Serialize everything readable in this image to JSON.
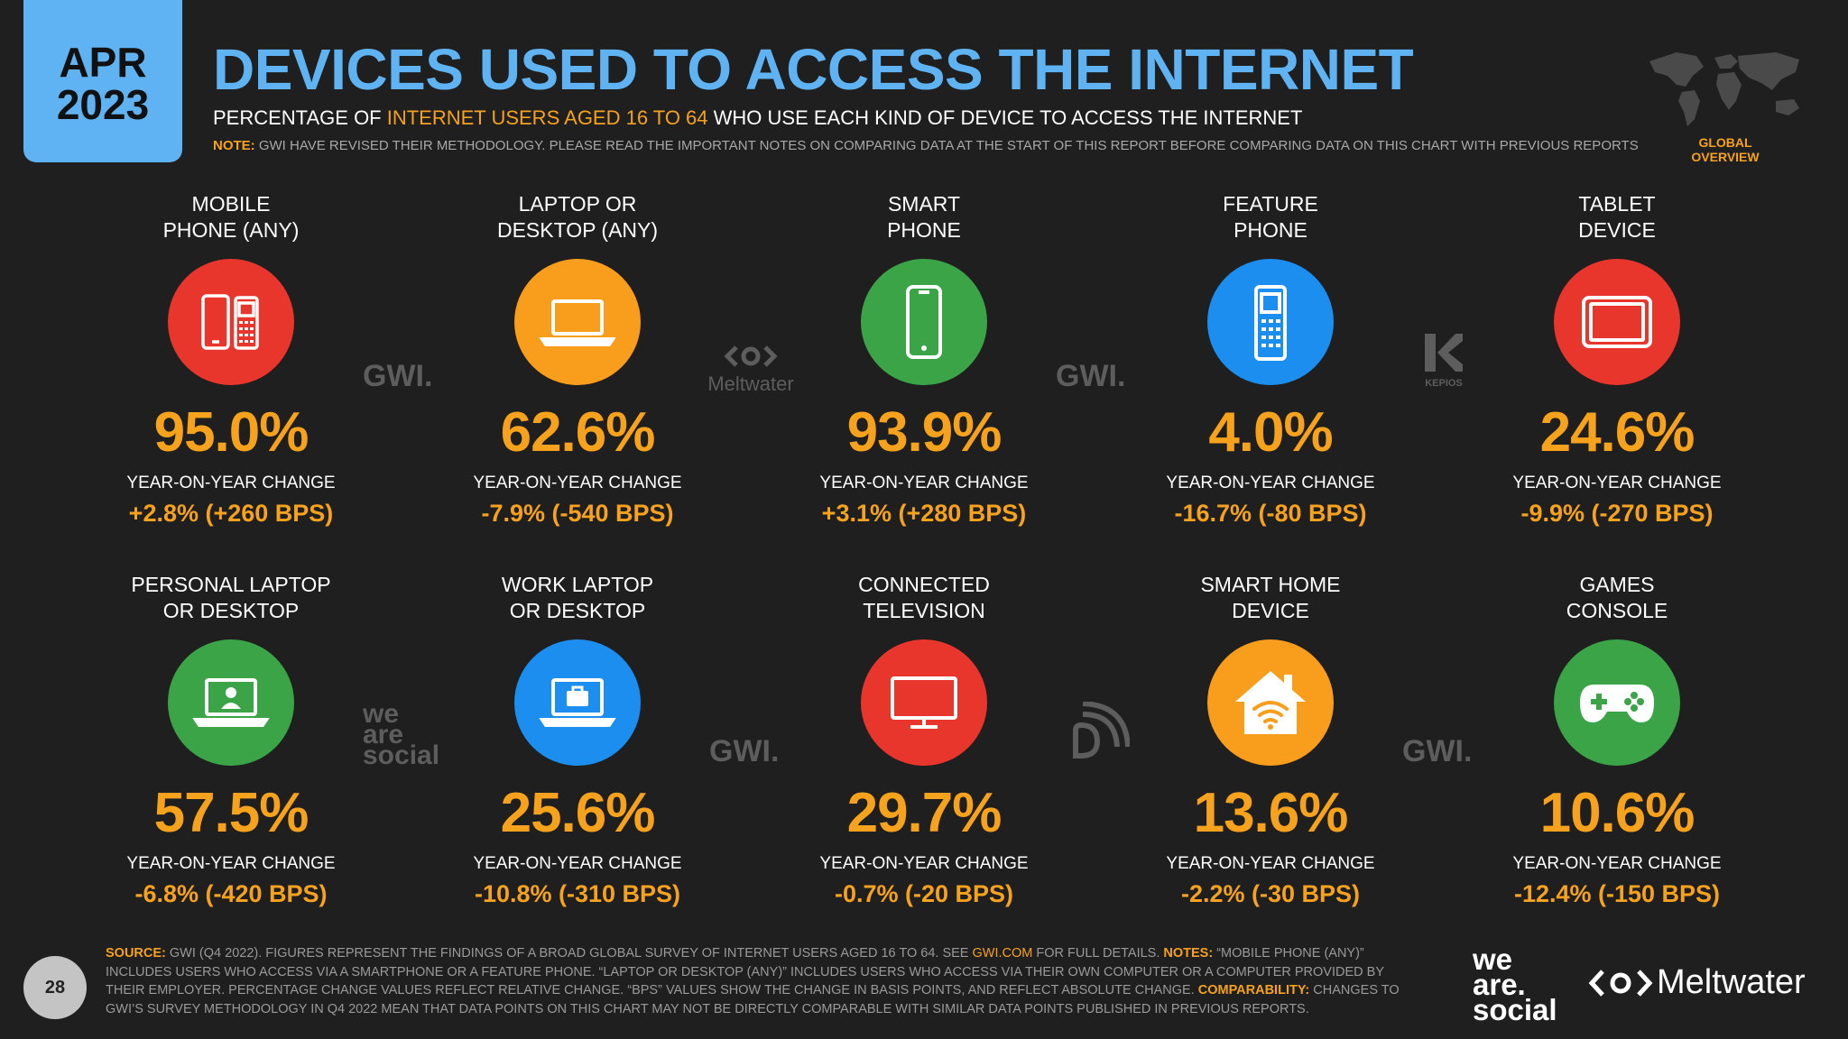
{
  "header": {
    "month": "APR",
    "year": "2023",
    "title": "DEVICES USED TO ACCESS THE INTERNET",
    "subtitle_pre": "PERCENTAGE OF ",
    "subtitle_highlight": "INTERNET USERS AGED 16 TO 64",
    "subtitle_post": " WHO USE EACH KIND OF DEVICE TO ACCESS THE INTERNET",
    "note_label": "NOTE:",
    "note_text": " GWI HAVE REVISED THEIR METHODOLOGY. PLEASE READ THE IMPORTANT NOTES ON COMPARING DATA AT THE START OF THIS REPORT BEFORE COMPARING DATA ON THIS CHART WITH PREVIOUS REPORTS",
    "region": "GLOBAL OVERVIEW"
  },
  "cards": [
    {
      "label_1": "MOBILE",
      "label_2": "PHONE (ANY)",
      "value": "95.0%",
      "yoy_label": "YEAR-ON-YEAR CHANGE",
      "yoy": "+2.8% (+260 BPS)",
      "color": "#e8362d",
      "icon": "mobile-phones-icon"
    },
    {
      "label_1": "LAPTOP OR",
      "label_2": "DESKTOP (ANY)",
      "value": "62.6%",
      "yoy_label": "YEAR-ON-YEAR CHANGE",
      "yoy": "-7.9% (-540 BPS)",
      "color": "#f99d1c",
      "icon": "laptop-icon"
    },
    {
      "label_1": "SMART",
      "label_2": "PHONE",
      "value": "93.9%",
      "yoy_label": "YEAR-ON-YEAR CHANGE",
      "yoy": "+3.1% (+280 BPS)",
      "color": "#3aa447",
      "icon": "smartphone-icon"
    },
    {
      "label_1": "FEATURE",
      "label_2": "PHONE",
      "value": "4.0%",
      "yoy_label": "YEAR-ON-YEAR CHANGE",
      "yoy": "-16.7% (-80 BPS)",
      "color": "#1b8ef0",
      "icon": "feature-phone-icon"
    },
    {
      "label_1": "TABLET",
      "label_2": "DEVICE",
      "value": "24.6%",
      "yoy_label": "YEAR-ON-YEAR CHANGE",
      "yoy": "-9.9% (-270 BPS)",
      "color": "#e8362d",
      "icon": "tablet-icon"
    },
    {
      "label_1": "PERSONAL LAPTOP",
      "label_2": "OR DESKTOP",
      "value": "57.5%",
      "yoy_label": "YEAR-ON-YEAR CHANGE",
      "yoy": "-6.8% (-420 BPS)",
      "color": "#3aa447",
      "icon": "personal-laptop-icon"
    },
    {
      "label_1": "WORK LAPTOP",
      "label_2": "OR DESKTOP",
      "value": "25.6%",
      "yoy_label": "YEAR-ON-YEAR CHANGE",
      "yoy": "-10.8% (-310 BPS)",
      "color": "#1b8ef0",
      "icon": "work-laptop-icon"
    },
    {
      "label_1": "CONNECTED",
      "label_2": "TELEVISION",
      "value": "29.7%",
      "yoy_label": "YEAR-ON-YEAR CHANGE",
      "yoy": "-0.7% (-20 BPS)",
      "color": "#e8362d",
      "icon": "television-icon"
    },
    {
      "label_1": "SMART HOME",
      "label_2": "DEVICE",
      "value": "13.6%",
      "yoy_label": "YEAR-ON-YEAR CHANGE",
      "yoy": "-2.2% (-30 BPS)",
      "color": "#f99d1c",
      "icon": "smart-home-icon"
    },
    {
      "label_1": "GAMES",
      "label_2": "CONSOLE",
      "value": "10.6%",
      "yoy_label": "YEAR-ON-YEAR CHANGE",
      "yoy": "-12.4% (-150 BPS)",
      "color": "#3aa447",
      "icon": "game-controller-icon"
    }
  ],
  "source_logos": {
    "gwi": "GWI.",
    "meltwater": "Meltwater",
    "kepios": "KEPIOS",
    "we": "we",
    "are": "are",
    "social": "social"
  },
  "footer": {
    "page_number": "28",
    "source_label": "SOURCE:",
    "source_text_1": " GWI (Q4 2022). FIGURES REPRESENT THE FINDINGS OF A BROAD GLOBAL SURVEY OF INTERNET USERS AGED 16 TO 64. SEE ",
    "source_link": "GWI.COM",
    "source_text_2": " FOR FULL DETAILS. ",
    "notes_label": "NOTES:",
    "notes_text": " “MOBILE PHONE (ANY)” INCLUDES USERS WHO ACCESS VIA A SMARTPHONE OR A FEATURE PHONE. “LAPTOP OR DESKTOP (ANY)” INCLUDES USERS WHO ACCESS VIA THEIR OWN COMPUTER OR A COMPUTER PROVIDED BY THEIR EMPLOYER. PERCENTAGE CHANGE VALUES REFLECT RELATIVE CHANGE. “BPS” VALUES SHOW THE CHANGE IN BASIS POINTS, AND REFLECT ABSOLUTE CHANGE. ",
    "comparability_label": "COMPARABILITY:",
    "comparability_text": " CHANGES TO GWI’S SURVEY METHODOLOGY IN Q4 2022 MEAN THAT DATA POINTS ON THIS CHART MAY NOT BE DIRECTLY COMPARABLE WITH SIMILAR DATA POINTS PUBLISHED IN PREVIOUS REPORTS.",
    "brand_we": "we",
    "brand_are": "are.",
    "brand_social": "social",
    "brand_meltwater": "Meltwater"
  }
}
